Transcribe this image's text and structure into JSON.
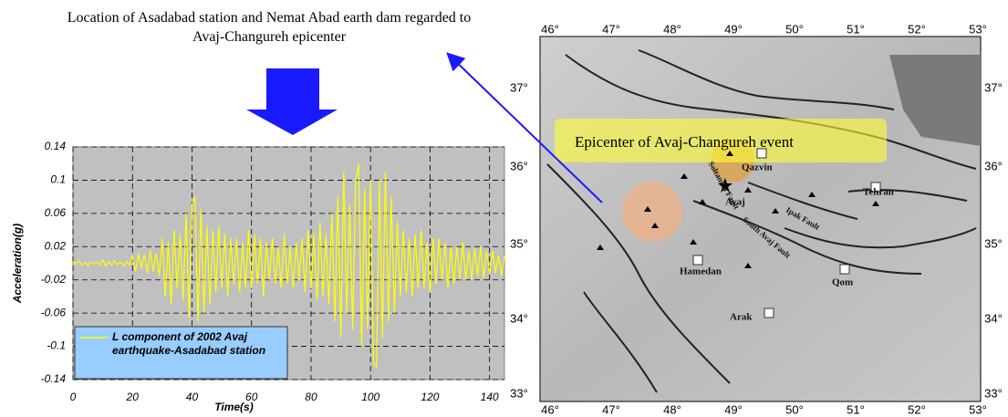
{
  "chart_data": {
    "type": "line",
    "x_label": "Time(s)",
    "y_label": "Acceleration(g)",
    "x": [
      0,
      1,
      2,
      3,
      4,
      5,
      6,
      7,
      8,
      9,
      10,
      11,
      12,
      13,
      14,
      15,
      16,
      17,
      18,
      19,
      20,
      21,
      22,
      23,
      24,
      25,
      26,
      27,
      28,
      29,
      30,
      31,
      32,
      33,
      34,
      35,
      36,
      37,
      38,
      39,
      40,
      41,
      42,
      43,
      44,
      45,
      46,
      47,
      48,
      49,
      50,
      51,
      52,
      53,
      54,
      55,
      56,
      57,
      58,
      59,
      60,
      61,
      62,
      63,
      64,
      65,
      66,
      67,
      68,
      69,
      70,
      71,
      72,
      73,
      74,
      75,
      76,
      77,
      78,
      79,
      80,
      81,
      82,
      83,
      84,
      85,
      86,
      87,
      88,
      89,
      90,
      91,
      92,
      93,
      94,
      95,
      96,
      97,
      98,
      99,
      100,
      101,
      102,
      103,
      104,
      105,
      106,
      107,
      108,
      109,
      110,
      111,
      112,
      113,
      114,
      115,
      116,
      117,
      118,
      119,
      120,
      121,
      122,
      123,
      124,
      125,
      126,
      127,
      128,
      129,
      130,
      131,
      132,
      133,
      134,
      135,
      136,
      137,
      138,
      139,
      140,
      141,
      142,
      143,
      144,
      145
    ],
    "series": [
      {
        "name": "L component of 2002 Avaj earthquake-Asadabad station",
        "color": "#ffff00",
        "values": [
          0.002,
          -0.001,
          0.003,
          -0.002,
          0.001,
          -0.003,
          0.002,
          -0.001,
          0.002,
          -0.002,
          0.004,
          -0.003,
          0.002,
          -0.002,
          0.003,
          -0.002,
          0.001,
          -0.003,
          0.002,
          -0.002,
          0.008,
          -0.01,
          0.012,
          -0.006,
          0.01,
          -0.012,
          0.015,
          -0.01,
          0.012,
          -0.015,
          0.03,
          -0.04,
          0.025,
          -0.05,
          0.04,
          -0.03,
          0.035,
          -0.045,
          0.06,
          -0.065,
          0.07,
          0.08,
          -0.07,
          0.065,
          -0.06,
          0.045,
          -0.05,
          0.04,
          -0.035,
          0.045,
          -0.03,
          0.035,
          -0.04,
          0.03,
          -0.025,
          0.03,
          -0.035,
          0.025,
          -0.03,
          0.04,
          -0.03,
          0.035,
          -0.025,
          0.03,
          -0.04,
          0.025,
          -0.02,
          0.03,
          -0.025,
          0.02,
          -0.03,
          0.035,
          -0.025,
          0.02,
          -0.03,
          0.025,
          -0.02,
          0.03,
          -0.035,
          0.04,
          -0.03,
          0.035,
          -0.045,
          0.05,
          -0.04,
          0.035,
          -0.05,
          0.06,
          -0.07,
          0.08,
          -0.09,
          0.11,
          -0.06,
          0.07,
          -0.08,
          0.1,
          0.12,
          -0.1,
          0.09,
          -0.08,
          0.1,
          -0.12,
          -0.125,
          0.1,
          -0.09,
          0.11,
          -0.07,
          0.08,
          -0.06,
          0.05,
          -0.04,
          0.04,
          -0.035,
          0.03,
          -0.04,
          0.035,
          -0.03,
          0.04,
          -0.03,
          0.025,
          -0.035,
          0.03,
          -0.025,
          0.03,
          -0.02,
          0.025,
          -0.03,
          0.02,
          -0.025,
          0.02,
          -0.02,
          0.025,
          -0.02,
          0.015,
          -0.02,
          0.018,
          -0.015,
          0.02,
          -0.018,
          0.015,
          -0.012,
          0.015,
          -0.012,
          0.01,
          -0.015,
          0.008
        ]
      }
    ],
    "xlim": [
      0,
      145
    ],
    "xticks": [
      0,
      20,
      40,
      60,
      80,
      100,
      120,
      140
    ],
    "ylim": [
      -0.14,
      0.14
    ],
    "yticks": [
      0.14,
      0.1,
      0.06,
      0.02,
      -0.02,
      -0.06,
      -0.1,
      -0.14
    ],
    "grid": true,
    "background": "#c0c0c0",
    "legend_position": "lower left"
  },
  "annotation": "Location of Asadabad station and Nemat Abad earth dam regarded to Avaj-Changureh epicenter",
  "map": {
    "lon_labels": [
      "46°",
      "47°",
      "48°",
      "49°",
      "50°",
      "51°",
      "52°",
      "53°"
    ],
    "lat_labels": [
      "37°",
      "36°",
      "35°",
      "34°",
      "33°"
    ],
    "callout": "Epicenter of Avaj-Changureh event",
    "places": [
      "Qazvin",
      "Tehran",
      "Hamedan",
      "Qom",
      "Arak",
      "Avaj"
    ],
    "faults": [
      "Soltanieh Fault",
      "Ipak Fault",
      "South Avaj Fault"
    ]
  }
}
